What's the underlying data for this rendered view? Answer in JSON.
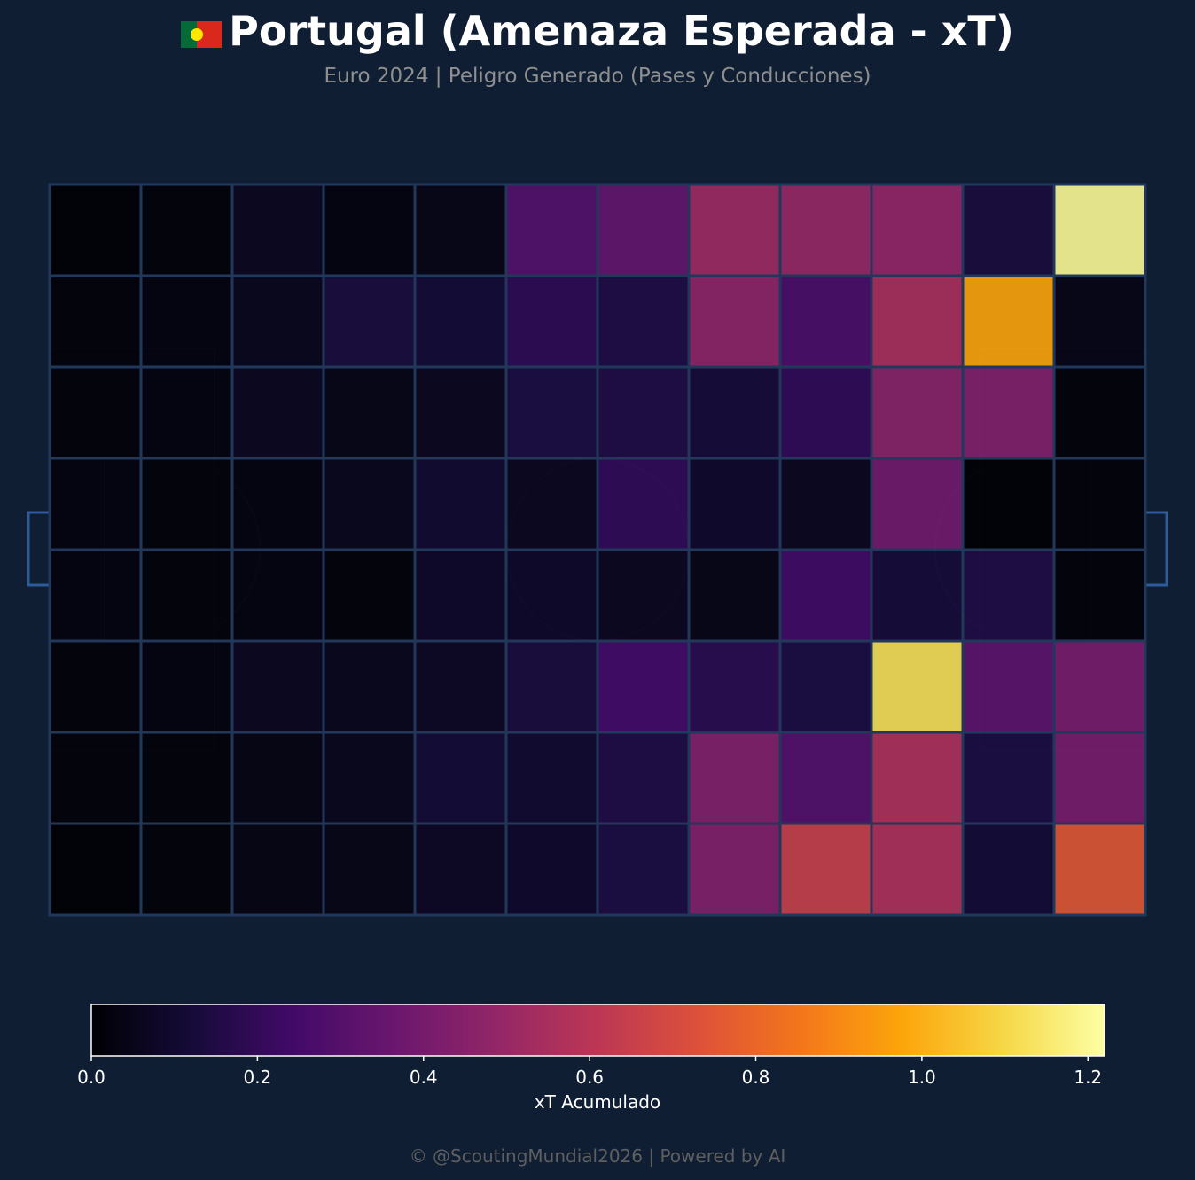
{
  "header": {
    "title": "Portugal (Amenaza Esperada - xT)",
    "subtitle": "Euro 2024 | Peligro Generado (Pases y Conducciones)",
    "flag_icon": "flag-icon"
  },
  "footer": {
    "text": "© @ScoutingMundial2026 | Powered by AI"
  },
  "colors": {
    "background": "#0f1e33",
    "pitch_lines": "#22385a",
    "goal": "#2e5c9a",
    "colormap": "inferno"
  },
  "chart_data": {
    "type": "heatmap",
    "title": "Portugal (Amenaza Esperada - xT)",
    "rows": 8,
    "cols": 12,
    "values": [
      [
        0.0,
        0.01,
        0.06,
        0.02,
        0.04,
        0.3,
        0.35,
        0.52,
        0.5,
        0.49,
        0.13,
        1.2
      ],
      [
        0.01,
        0.02,
        0.05,
        0.13,
        0.11,
        0.19,
        0.15,
        0.48,
        0.27,
        0.56,
        0.97,
        0.04
      ],
      [
        0.01,
        0.02,
        0.06,
        0.04,
        0.06,
        0.14,
        0.15,
        0.12,
        0.2,
        0.46,
        0.44,
        0.01
      ],
      [
        0.02,
        0.01,
        0.02,
        0.05,
        0.1,
        0.06,
        0.2,
        0.09,
        0.06,
        0.39,
        0.0,
        0.01
      ],
      [
        0.02,
        0.01,
        0.02,
        0.01,
        0.08,
        0.08,
        0.06,
        0.04,
        0.24,
        0.12,
        0.15,
        0.01
      ],
      [
        0.01,
        0.02,
        0.06,
        0.05,
        0.07,
        0.13,
        0.25,
        0.18,
        0.14,
        1.12,
        0.33,
        0.41
      ],
      [
        0.01,
        0.01,
        0.03,
        0.05,
        0.11,
        0.1,
        0.15,
        0.44,
        0.3,
        0.57,
        0.14,
        0.41
      ],
      [
        0.0,
        0.01,
        0.03,
        0.04,
        0.07,
        0.09,
        0.14,
        0.44,
        0.65,
        0.57,
        0.11,
        0.75
      ]
    ],
    "colorbar": {
      "label": "xT Acumulado",
      "range": [
        0.0,
        1.22
      ],
      "ticks": [
        0.0,
        0.2,
        0.4,
        0.6,
        0.8,
        1.0,
        1.2
      ],
      "tick_labels": [
        "0.0",
        "0.2",
        "0.4",
        "0.6",
        "0.8",
        "1.0",
        "1.2"
      ]
    }
  }
}
